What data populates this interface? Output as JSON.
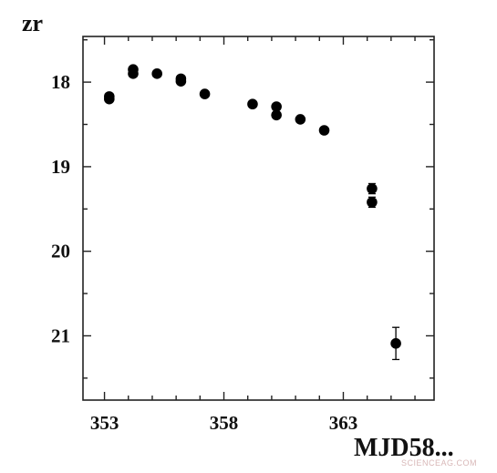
{
  "chart_data": {
    "type": "scatter",
    "ylabel": "zr",
    "xlabel": "MJD58...",
    "x_ticks": [
      353,
      358,
      363
    ],
    "y_ticks": [
      18,
      19,
      20,
      21
    ],
    "xlim": [
      352.1,
      366.8
    ],
    "ylim": [
      21.76,
      17.46
    ],
    "y_inverted": true,
    "grid": false,
    "marker_color": "#000000",
    "points": [
      {
        "x": 353.2,
        "y": 18.17,
        "err": 0.03
      },
      {
        "x": 353.2,
        "y": 18.2,
        "err": 0.03
      },
      {
        "x": 354.2,
        "y": 17.85,
        "err": 0.03
      },
      {
        "x": 354.2,
        "y": 17.9,
        "err": 0.03
      },
      {
        "x": 355.2,
        "y": 17.9,
        "err": 0.03
      },
      {
        "x": 356.2,
        "y": 17.96,
        "err": 0.03
      },
      {
        "x": 356.2,
        "y": 17.99,
        "err": 0.03
      },
      {
        "x": 357.2,
        "y": 18.14,
        "err": 0.03
      },
      {
        "x": 359.2,
        "y": 18.26,
        "err": 0.03
      },
      {
        "x": 360.2,
        "y": 18.29,
        "err": 0.03
      },
      {
        "x": 360.2,
        "y": 18.39,
        "err": 0.03
      },
      {
        "x": 361.2,
        "y": 18.44,
        "err": 0.03
      },
      {
        "x": 362.2,
        "y": 18.57,
        "err": 0.03
      },
      {
        "x": 364.2,
        "y": 19.26,
        "err": 0.06
      },
      {
        "x": 364.2,
        "y": 19.42,
        "err": 0.06
      },
      {
        "x": 365.2,
        "y": 21.09,
        "err": 0.19
      }
    ]
  },
  "watermark": "SCIENCEAG.COM"
}
